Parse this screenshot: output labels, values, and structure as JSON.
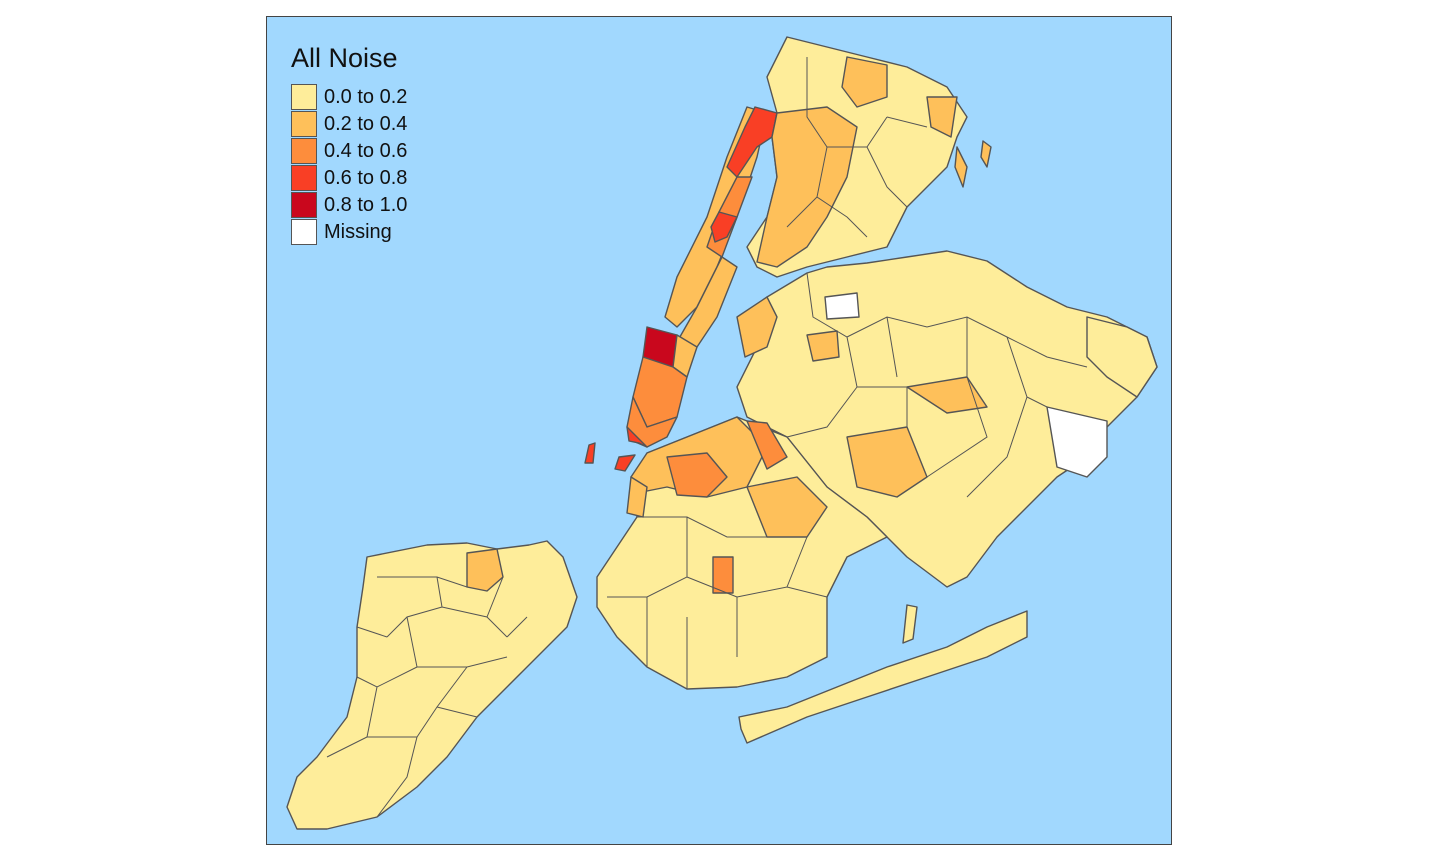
{
  "legend": {
    "title": "All Noise",
    "items": [
      {
        "label": "0.0 to 0.2",
        "color": "#feed9a"
      },
      {
        "label": "0.2 to 0.4",
        "color": "#fec05a"
      },
      {
        "label": "0.4 to 0.6",
        "color": "#fd8d3c"
      },
      {
        "label": "0.6 to 0.8",
        "color": "#f93f25"
      },
      {
        "label": "0.8 to 1.0",
        "color": "#c9071d"
      },
      {
        "label": "Missing",
        "color": "#ffffff"
      }
    ]
  },
  "colors": {
    "water": "#a1d8fe",
    "border": "#555555"
  }
}
